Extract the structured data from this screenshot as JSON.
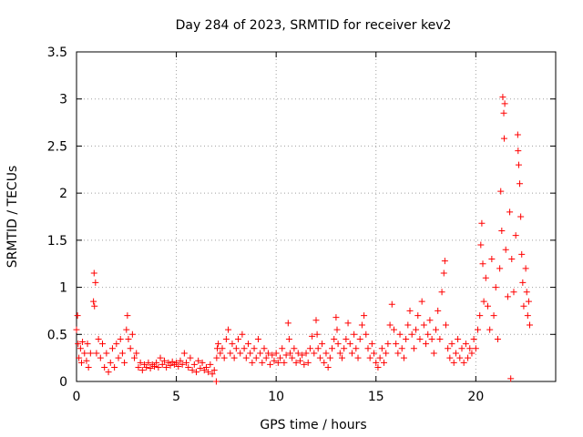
{
  "chart_data": {
    "type": "scatter",
    "title": "Day 284 of 2023, SRMTID for receiver kev2",
    "xlabel": "GPS time / hours",
    "ylabel": "SRMTID / TECUs",
    "xlim": [
      0,
      24
    ],
    "ylim": [
      0,
      3.5
    ],
    "x_ticks": [
      0,
      5,
      10,
      15,
      20
    ],
    "x_tick_labels": [
      "0",
      "5",
      "10",
      "15",
      "20"
    ],
    "y_ticks": [
      0,
      0.5,
      1,
      1.5,
      2,
      2.5,
      3,
      3.5
    ],
    "y_tick_labels": [
      "0",
      "0.5",
      "1",
      "1.5",
      "2",
      "2.5",
      "3",
      "3.5"
    ],
    "grid": true,
    "marker": "+",
    "series": [
      {
        "name": "SRMTID",
        "color": "#ff0000",
        "points": [
          [
            0.0,
            0.55
          ],
          [
            0.05,
            0.7
          ],
          [
            0.08,
            0.4
          ],
          [
            0.12,
            0.25
          ],
          [
            0.2,
            0.35
          ],
          [
            0.25,
            0.2
          ],
          [
            0.3,
            0.42
          ],
          [
            0.4,
            0.3
          ],
          [
            0.5,
            0.22
          ],
          [
            0.55,
            0.4
          ],
          [
            0.6,
            0.15
          ],
          [
            0.7,
            0.3
          ],
          [
            0.85,
            0.85
          ],
          [
            0.88,
            1.15
          ],
          [
            0.9,
            0.8
          ],
          [
            0.95,
            1.05
          ],
          [
            1.0,
            0.3
          ],
          [
            1.1,
            0.45
          ],
          [
            1.2,
            0.25
          ],
          [
            1.3,
            0.4
          ],
          [
            1.4,
            0.15
          ],
          [
            1.5,
            0.3
          ],
          [
            1.6,
            0.1
          ],
          [
            1.7,
            0.2
          ],
          [
            1.8,
            0.35
          ],
          [
            1.9,
            0.15
          ],
          [
            2.0,
            0.4
          ],
          [
            2.1,
            0.25
          ],
          [
            2.2,
            0.45
          ],
          [
            2.3,
            0.3
          ],
          [
            2.4,
            0.2
          ],
          [
            2.5,
            0.55
          ],
          [
            2.55,
            0.7
          ],
          [
            2.6,
            0.45
          ],
          [
            2.7,
            0.35
          ],
          [
            2.8,
            0.5
          ],
          [
            2.9,
            0.25
          ],
          [
            3.0,
            0.3
          ],
          [
            3.1,
            0.15
          ],
          [
            3.2,
            0.2
          ],
          [
            3.3,
            0.12
          ],
          [
            3.4,
            0.18
          ],
          [
            3.5,
            0.15
          ],
          [
            3.6,
            0.2
          ],
          [
            3.7,
            0.14
          ],
          [
            3.8,
            0.18
          ],
          [
            3.9,
            0.16
          ],
          [
            4.0,
            0.2
          ],
          [
            4.1,
            0.15
          ],
          [
            4.2,
            0.25
          ],
          [
            4.3,
            0.18
          ],
          [
            4.4,
            0.22
          ],
          [
            4.5,
            0.15
          ],
          [
            4.6,
            0.2
          ],
          [
            4.7,
            0.17
          ],
          [
            4.8,
            0.21
          ],
          [
            4.9,
            0.18
          ],
          [
            5.0,
            0.2
          ],
          [
            5.1,
            0.16
          ],
          [
            5.2,
            0.22
          ],
          [
            5.3,
            0.18
          ],
          [
            5.4,
            0.3
          ],
          [
            5.5,
            0.2
          ],
          [
            5.6,
            0.15
          ],
          [
            5.7,
            0.25
          ],
          [
            5.8,
            0.12
          ],
          [
            5.9,
            0.18
          ],
          [
            6.0,
            0.1
          ],
          [
            6.1,
            0.22
          ],
          [
            6.2,
            0.14
          ],
          [
            6.3,
            0.2
          ],
          [
            6.4,
            0.12
          ],
          [
            6.5,
            0.15
          ],
          [
            6.6,
            0.1
          ],
          [
            6.7,
            0.18
          ],
          [
            6.8,
            0.08
          ],
          [
            6.9,
            0.12
          ],
          [
            7.0,
            0.0
          ],
          [
            7.02,
            0.25
          ],
          [
            7.05,
            0.35
          ],
          [
            7.1,
            0.4
          ],
          [
            7.2,
            0.3
          ],
          [
            7.3,
            0.35
          ],
          [
            7.4,
            0.25
          ],
          [
            7.5,
            0.45
          ],
          [
            7.6,
            0.55
          ],
          [
            7.7,
            0.3
          ],
          [
            7.8,
            0.4
          ],
          [
            7.9,
            0.25
          ],
          [
            8.0,
            0.35
          ],
          [
            8.1,
            0.45
          ],
          [
            8.2,
            0.3
          ],
          [
            8.3,
            0.5
          ],
          [
            8.4,
            0.35
          ],
          [
            8.5,
            0.25
          ],
          [
            8.6,
            0.4
          ],
          [
            8.7,
            0.3
          ],
          [
            8.8,
            0.2
          ],
          [
            8.9,
            0.35
          ],
          [
            9.0,
            0.25
          ],
          [
            9.1,
            0.45
          ],
          [
            9.2,
            0.3
          ],
          [
            9.3,
            0.2
          ],
          [
            9.4,
            0.35
          ],
          [
            9.5,
            0.25
          ],
          [
            9.6,
            0.3
          ],
          [
            9.7,
            0.18
          ],
          [
            9.8,
            0.28
          ],
          [
            9.9,
            0.22
          ],
          [
            10.0,
            0.3
          ],
          [
            10.1,
            0.2
          ],
          [
            10.2,
            0.25
          ],
          [
            10.3,
            0.35
          ],
          [
            10.4,
            0.2
          ],
          [
            10.5,
            0.28
          ],
          [
            10.6,
            0.62
          ],
          [
            10.65,
            0.45
          ],
          [
            10.7,
            0.3
          ],
          [
            10.8,
            0.25
          ],
          [
            10.9,
            0.35
          ],
          [
            11.0,
            0.2
          ],
          [
            11.1,
            0.3
          ],
          [
            11.2,
            0.22
          ],
          [
            11.3,
            0.28
          ],
          [
            11.4,
            0.18
          ],
          [
            11.5,
            0.3
          ],
          [
            11.6,
            0.2
          ],
          [
            11.7,
            0.35
          ],
          [
            11.8,
            0.48
          ],
          [
            11.9,
            0.3
          ],
          [
            12.0,
            0.65
          ],
          [
            12.05,
            0.5
          ],
          [
            12.1,
            0.35
          ],
          [
            12.2,
            0.25
          ],
          [
            12.3,
            0.4
          ],
          [
            12.4,
            0.2
          ],
          [
            12.5,
            0.3
          ],
          [
            12.6,
            0.15
          ],
          [
            12.7,
            0.25
          ],
          [
            12.8,
            0.35
          ],
          [
            12.9,
            0.45
          ],
          [
            13.0,
            0.68
          ],
          [
            13.05,
            0.55
          ],
          [
            13.1,
            0.4
          ],
          [
            13.2,
            0.3
          ],
          [
            13.3,
            0.25
          ],
          [
            13.4,
            0.35
          ],
          [
            13.5,
            0.45
          ],
          [
            13.6,
            0.62
          ],
          [
            13.7,
            0.4
          ],
          [
            13.8,
            0.3
          ],
          [
            13.9,
            0.5
          ],
          [
            14.0,
            0.35
          ],
          [
            14.1,
            0.25
          ],
          [
            14.2,
            0.45
          ],
          [
            14.3,
            0.6
          ],
          [
            14.4,
            0.7
          ],
          [
            14.5,
            0.5
          ],
          [
            14.6,
            0.35
          ],
          [
            14.7,
            0.25
          ],
          [
            14.8,
            0.4
          ],
          [
            14.9,
            0.3
          ],
          [
            15.0,
            0.2
          ],
          [
            15.1,
            0.15
          ],
          [
            15.2,
            0.25
          ],
          [
            15.3,
            0.35
          ],
          [
            15.4,
            0.2
          ],
          [
            15.5,
            0.3
          ],
          [
            15.6,
            0.4
          ],
          [
            15.7,
            0.6
          ],
          [
            15.8,
            0.82
          ],
          [
            15.9,
            0.55
          ],
          [
            16.0,
            0.4
          ],
          [
            16.1,
            0.3
          ],
          [
            16.2,
            0.5
          ],
          [
            16.3,
            0.35
          ],
          [
            16.4,
            0.25
          ],
          [
            16.5,
            0.45
          ],
          [
            16.6,
            0.6
          ],
          [
            16.7,
            0.75
          ],
          [
            16.8,
            0.5
          ],
          [
            16.9,
            0.35
          ],
          [
            17.0,
            0.55
          ],
          [
            17.1,
            0.7
          ],
          [
            17.2,
            0.45
          ],
          [
            17.3,
            0.85
          ],
          [
            17.4,
            0.6
          ],
          [
            17.5,
            0.4
          ],
          [
            17.6,
            0.5
          ],
          [
            17.7,
            0.65
          ],
          [
            17.8,
            0.45
          ],
          [
            17.9,
            0.3
          ],
          [
            18.0,
            0.55
          ],
          [
            18.1,
            0.75
          ],
          [
            18.2,
            0.45
          ],
          [
            18.3,
            0.95
          ],
          [
            18.4,
            1.15
          ],
          [
            18.45,
            1.28
          ],
          [
            18.5,
            0.6
          ],
          [
            18.6,
            0.35
          ],
          [
            18.7,
            0.25
          ],
          [
            18.8,
            0.4
          ],
          [
            18.9,
            0.2
          ],
          [
            19.0,
            0.3
          ],
          [
            19.1,
            0.45
          ],
          [
            19.2,
            0.25
          ],
          [
            19.3,
            0.35
          ],
          [
            19.4,
            0.2
          ],
          [
            19.5,
            0.4
          ],
          [
            19.6,
            0.25
          ],
          [
            19.7,
            0.35
          ],
          [
            19.8,
            0.3
          ],
          [
            19.9,
            0.45
          ],
          [
            20.0,
            0.35
          ],
          [
            20.1,
            0.55
          ],
          [
            20.2,
            0.7
          ],
          [
            20.25,
            1.45
          ],
          [
            20.3,
            1.68
          ],
          [
            20.35,
            1.25
          ],
          [
            20.4,
            0.85
          ],
          [
            20.5,
            1.1
          ],
          [
            20.6,
            0.8
          ],
          [
            20.7,
            0.55
          ],
          [
            20.8,
            1.3
          ],
          [
            20.9,
            0.7
          ],
          [
            21.0,
            1.0
          ],
          [
            21.1,
            0.45
          ],
          [
            21.2,
            1.2
          ],
          [
            21.25,
            2.02
          ],
          [
            21.3,
            1.6
          ],
          [
            21.35,
            3.02
          ],
          [
            21.4,
            2.85
          ],
          [
            21.42,
            2.58
          ],
          [
            21.45,
            2.95
          ],
          [
            21.5,
            1.4
          ],
          [
            21.6,
            0.9
          ],
          [
            21.7,
            1.8
          ],
          [
            21.75,
            0.03
          ],
          [
            21.8,
            1.3
          ],
          [
            21.9,
            0.95
          ],
          [
            22.0,
            1.55
          ],
          [
            22.1,
            2.62
          ],
          [
            22.12,
            2.45
          ],
          [
            22.15,
            2.3
          ],
          [
            22.2,
            2.1
          ],
          [
            22.25,
            1.75
          ],
          [
            22.3,
            1.35
          ],
          [
            22.35,
            1.05
          ],
          [
            22.4,
            0.8
          ],
          [
            22.5,
            1.2
          ],
          [
            22.55,
            0.95
          ],
          [
            22.6,
            0.7
          ],
          [
            22.65,
            0.85
          ],
          [
            22.7,
            0.6
          ]
        ]
      }
    ]
  }
}
